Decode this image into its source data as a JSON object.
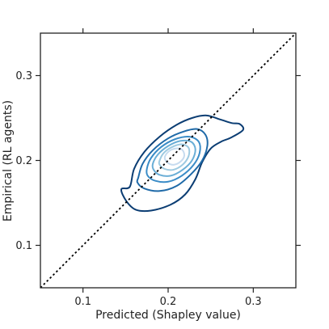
{
  "chart_data": {
    "type": "contour",
    "title": "",
    "xlabel": "Predicted (Shapley value)",
    "ylabel": "Empirical (RL agents)",
    "xlim": [
      0.05,
      0.35
    ],
    "ylim": [
      0.05,
      0.35
    ],
    "xticks": [
      {
        "value": 0.1,
        "label": "0.1"
      },
      {
        "value": 0.2,
        "label": "0.2"
      },
      {
        "value": 0.3,
        "label": "0.3"
      }
    ],
    "yticks": [
      {
        "value": 0.1,
        "label": "0.1"
      },
      {
        "value": 0.2,
        "label": "0.2"
      },
      {
        "value": 0.3,
        "label": "0.3"
      }
    ],
    "grid": false,
    "reference_line": {
      "style": "dotted",
      "color": "#000000",
      "points": [
        [
          0.05,
          0.05
        ],
        [
          0.35,
          0.35
        ]
      ]
    },
    "series": [
      {
        "level": 1,
        "color": "#0b3d73",
        "points": [
          [
            0.155,
            0.169
          ],
          [
            0.16,
            0.19
          ],
          [
            0.172,
            0.21
          ],
          [
            0.19,
            0.228
          ],
          [
            0.21,
            0.242
          ],
          [
            0.228,
            0.25
          ],
          [
            0.245,
            0.253
          ],
          [
            0.262,
            0.248
          ],
          [
            0.275,
            0.244
          ],
          [
            0.284,
            0.243
          ],
          [
            0.288,
            0.236
          ],
          [
            0.274,
            0.227
          ],
          [
            0.262,
            0.222
          ],
          [
            0.25,
            0.214
          ],
          [
            0.24,
            0.198
          ],
          [
            0.232,
            0.178
          ],
          [
            0.22,
            0.16
          ],
          [
            0.203,
            0.148
          ],
          [
            0.18,
            0.141
          ],
          [
            0.162,
            0.142
          ],
          [
            0.151,
            0.152
          ],
          [
            0.145,
            0.166
          ],
          [
            0.155,
            0.169
          ]
        ]
      },
      {
        "level": 2,
        "color": "#1f6aa8",
        "points": [
          [
            0.165,
            0.18
          ],
          [
            0.17,
            0.196
          ],
          [
            0.182,
            0.212
          ],
          [
            0.2,
            0.226
          ],
          [
            0.218,
            0.234
          ],
          [
            0.234,
            0.237
          ],
          [
            0.244,
            0.23
          ],
          [
            0.246,
            0.217
          ],
          [
            0.24,
            0.2
          ],
          [
            0.227,
            0.184
          ],
          [
            0.21,
            0.17
          ],
          [
            0.19,
            0.164
          ],
          [
            0.172,
            0.167
          ],
          [
            0.164,
            0.174
          ],
          [
            0.165,
            0.18
          ]
        ]
      },
      {
        "level": 3,
        "color": "#3a8cc7",
        "points": [
          [
            0.175,
            0.19
          ],
          [
            0.18,
            0.203
          ],
          [
            0.192,
            0.216
          ],
          [
            0.208,
            0.225
          ],
          [
            0.225,
            0.228
          ],
          [
            0.236,
            0.222
          ],
          [
            0.237,
            0.209
          ],
          [
            0.23,
            0.195
          ],
          [
            0.216,
            0.182
          ],
          [
            0.2,
            0.175
          ],
          [
            0.185,
            0.176
          ],
          [
            0.176,
            0.182
          ],
          [
            0.175,
            0.19
          ]
        ]
      },
      {
        "level": 4,
        "color": "#6aaed6",
        "points": [
          [
            0.182,
            0.196
          ],
          [
            0.188,
            0.207
          ],
          [
            0.2,
            0.217
          ],
          [
            0.214,
            0.223
          ],
          [
            0.227,
            0.222
          ],
          [
            0.232,
            0.213
          ],
          [
            0.228,
            0.2
          ],
          [
            0.217,
            0.189
          ],
          [
            0.203,
            0.182
          ],
          [
            0.19,
            0.183
          ],
          [
            0.183,
            0.189
          ],
          [
            0.182,
            0.196
          ]
        ]
      },
      {
        "level": 5,
        "color": "#9ecae1",
        "points": [
          [
            0.19,
            0.2
          ],
          [
            0.195,
            0.209
          ],
          [
            0.205,
            0.216
          ],
          [
            0.216,
            0.219
          ],
          [
            0.224,
            0.215
          ],
          [
            0.224,
            0.205
          ],
          [
            0.217,
            0.195
          ],
          [
            0.206,
            0.189
          ],
          [
            0.196,
            0.19
          ],
          [
            0.19,
            0.195
          ],
          [
            0.19,
            0.2
          ]
        ]
      },
      {
        "level": 6,
        "color": "#c6dbef",
        "points": [
          [
            0.196,
            0.203
          ],
          [
            0.2,
            0.21
          ],
          [
            0.208,
            0.214
          ],
          [
            0.216,
            0.213
          ],
          [
            0.219,
            0.206
          ],
          [
            0.215,
            0.199
          ],
          [
            0.207,
            0.195
          ],
          [
            0.2,
            0.197
          ],
          [
            0.196,
            0.203
          ]
        ]
      }
    ]
  }
}
